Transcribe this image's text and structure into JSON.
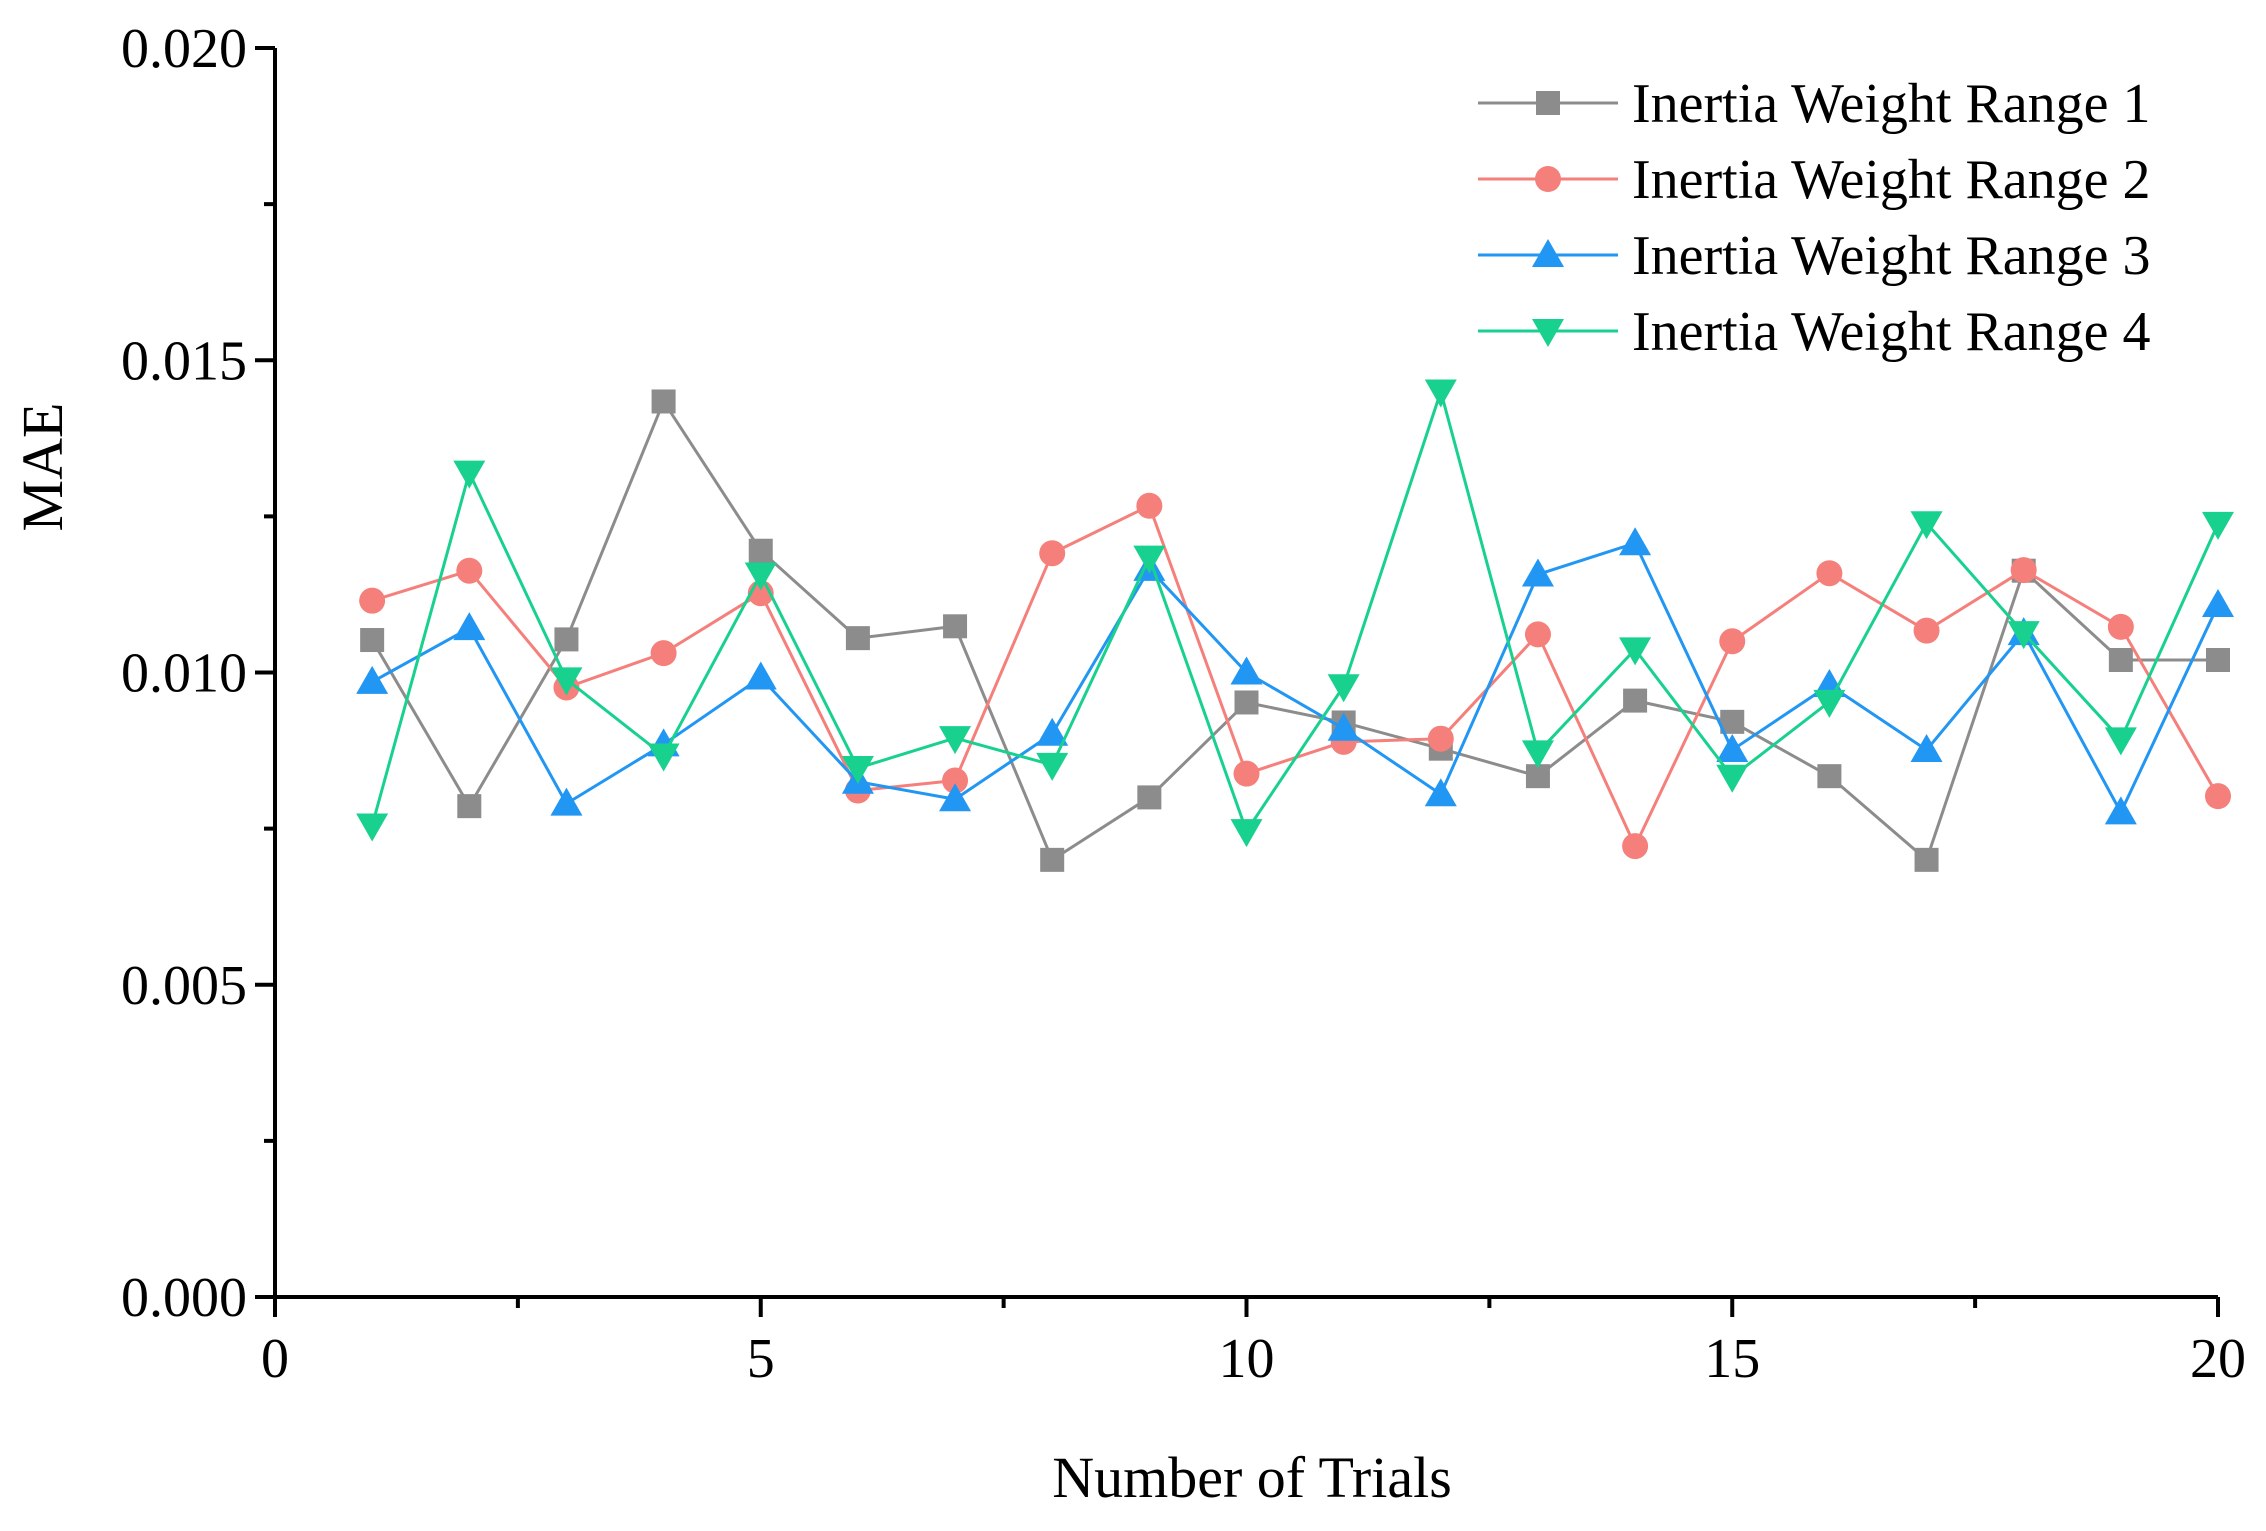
{
  "chart_data": {
    "type": "line",
    "title": "",
    "xlabel": "Number of Trials",
    "ylabel": "MAE",
    "xlim": [
      0,
      20
    ],
    "ylim": [
      0,
      0.02
    ],
    "xticks": [
      0,
      5,
      10,
      15,
      20
    ],
    "xtick_labels": [
      "0",
      "5",
      "10",
      "15",
      "20"
    ],
    "yticks": [
      0.0,
      0.005,
      0.01,
      0.015,
      0.02
    ],
    "ytick_labels": [
      "0.000",
      "0.005",
      "0.010",
      "0.015",
      "0.020"
    ],
    "grid": false,
    "legend_position": "top-right",
    "x": [
      1,
      2,
      3,
      4,
      5,
      6,
      7,
      8,
      9,
      10,
      11,
      12,
      13,
      14,
      15,
      16,
      17,
      18,
      19,
      20
    ],
    "series": [
      {
        "name": "Inertia Weight Range 1",
        "color": "#8c8c8c",
        "marker": "square",
        "values": [
          0.01052,
          0.00786,
          0.01053,
          0.01434,
          0.01195,
          0.01055,
          0.01074,
          0.007,
          0.008,
          0.00952,
          0.0092,
          0.00878,
          0.00834,
          0.00955,
          0.00921,
          0.00834,
          0.007,
          0.01163,
          0.0102,
          0.0102
        ]
      },
      {
        "name": "Inertia Weight Range 2",
        "color": "#f57f7a",
        "marker": "circle",
        "values": [
          0.01115,
          0.01163,
          0.00976,
          0.01031,
          0.01127,
          0.00811,
          0.00827,
          0.01191,
          0.01267,
          0.00838,
          0.00889,
          0.00894,
          0.01061,
          0.00722,
          0.0105,
          0.01159,
          0.01067,
          0.01164,
          0.01073,
          0.00802
        ]
      },
      {
        "name": "Inertia Weight Range 3",
        "color": "#2196f3",
        "marker": "triangle-up",
        "values": [
          0.00985,
          0.01071,
          0.0079,
          0.00885,
          0.00992,
          0.00825,
          0.00797,
          0.00902,
          0.01166,
          0.01,
          0.0091,
          0.00805,
          0.01157,
          0.01207,
          0.00876,
          0.0098,
          0.00876,
          0.01063,
          0.00776,
          0.01108
        ]
      },
      {
        "name": "Inertia Weight Range 4",
        "color": "#19d18f",
        "marker": "triangle-down",
        "values": [
          0.00755,
          0.0132,
          0.00989,
          0.00867,
          0.01157,
          0.00847,
          0.00895,
          0.00852,
          0.01184,
          0.00746,
          0.00978,
          0.0145,
          0.00872,
          0.01037,
          0.00833,
          0.00953,
          0.01239,
          0.01063,
          0.00893,
          0.01238
        ]
      }
    ]
  }
}
